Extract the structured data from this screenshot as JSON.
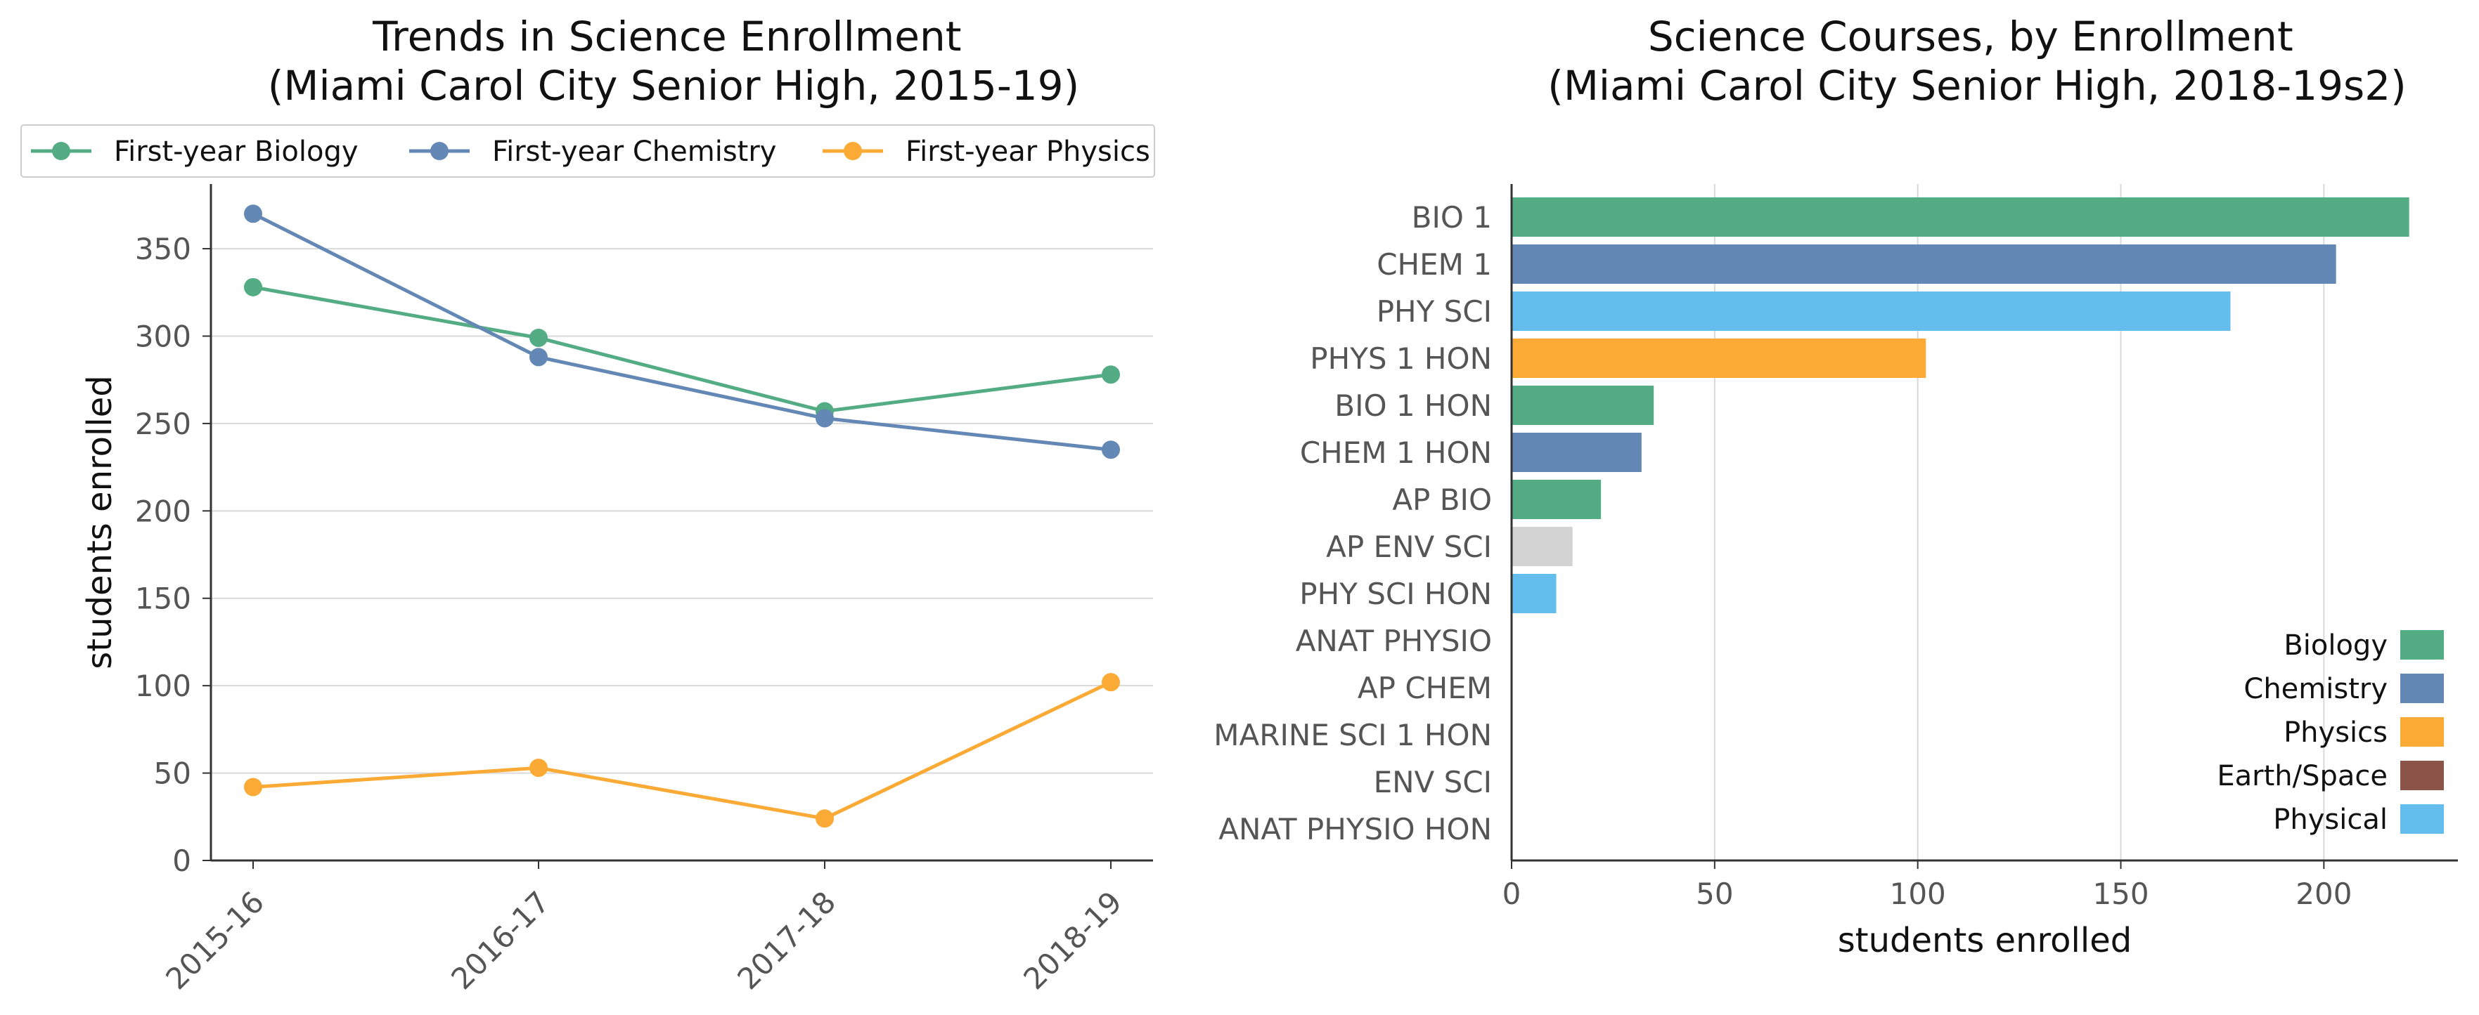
{
  "colors": {
    "biology": "#54AC85",
    "chemistry": "#6488B5",
    "physics": "#FBAA35",
    "earth_space": "#8A5548",
    "physical": "#63BEEE",
    "other": "#D3D3D3"
  },
  "chart_data": [
    {
      "type": "line",
      "title": "Trends in Science Enrollment\n(Miami Carol City Senior High, 2015-19)",
      "xlabel": "",
      "ylabel": "students enrolled",
      "categories": [
        "2015-16",
        "2016-17",
        "2017-18",
        "2018-19"
      ],
      "ylim": [
        0,
        387
      ],
      "yticks": [
        0,
        50,
        100,
        150,
        200,
        250,
        300,
        350
      ],
      "grid": "horizontal",
      "legend": "top",
      "series": [
        {
          "name": "First-year Biology",
          "color_key": "biology",
          "values": [
            328,
            299,
            257,
            278
          ]
        },
        {
          "name": "First-year Chemistry",
          "color_key": "chemistry",
          "values": [
            370,
            288,
            253,
            235
          ]
        },
        {
          "name": "First-year Physics",
          "color_key": "physics",
          "values": [
            42,
            53,
            24,
            102
          ]
        }
      ]
    },
    {
      "type": "bar",
      "orientation": "horizontal",
      "title": "Science Courses, by Enrollment\n(Miami Carol City Senior High, 2018-19s2)",
      "xlabel": "students enrolled",
      "ylabel": "",
      "xlim": [
        0,
        233
      ],
      "xticks": [
        0,
        50,
        100,
        150,
        200
      ],
      "grid": "vertical",
      "legend": "bottom-right",
      "categories": [
        "BIO 1",
        "CHEM 1",
        "PHY SCI",
        "PHYS 1 HON",
        "BIO 1 HON",
        "CHEM 1 HON",
        "AP BIO",
        "AP ENV SCI",
        "PHY SCI HON",
        "ANAT PHYSIO",
        "AP CHEM",
        "MARINE SCI 1 HON",
        "ENV SCI",
        "ANAT PHYSIO HON"
      ],
      "values": [
        221,
        203,
        177,
        102,
        35,
        32,
        22,
        15,
        11,
        0,
        0,
        0,
        0,
        0
      ],
      "color_keys": [
        "biology",
        "chemistry",
        "physical",
        "physics",
        "biology",
        "chemistry",
        "biology",
        "other",
        "physical",
        "biology",
        "chemistry",
        "biology",
        "other",
        "biology"
      ],
      "legend_entries": [
        {
          "label": "Biology",
          "color_key": "biology"
        },
        {
          "label": "Chemistry",
          "color_key": "chemistry"
        },
        {
          "label": "Physics",
          "color_key": "physics"
        },
        {
          "label": "Earth/Space",
          "color_key": "earth_space"
        },
        {
          "label": "Physical",
          "color_key": "physical"
        }
      ]
    }
  ]
}
